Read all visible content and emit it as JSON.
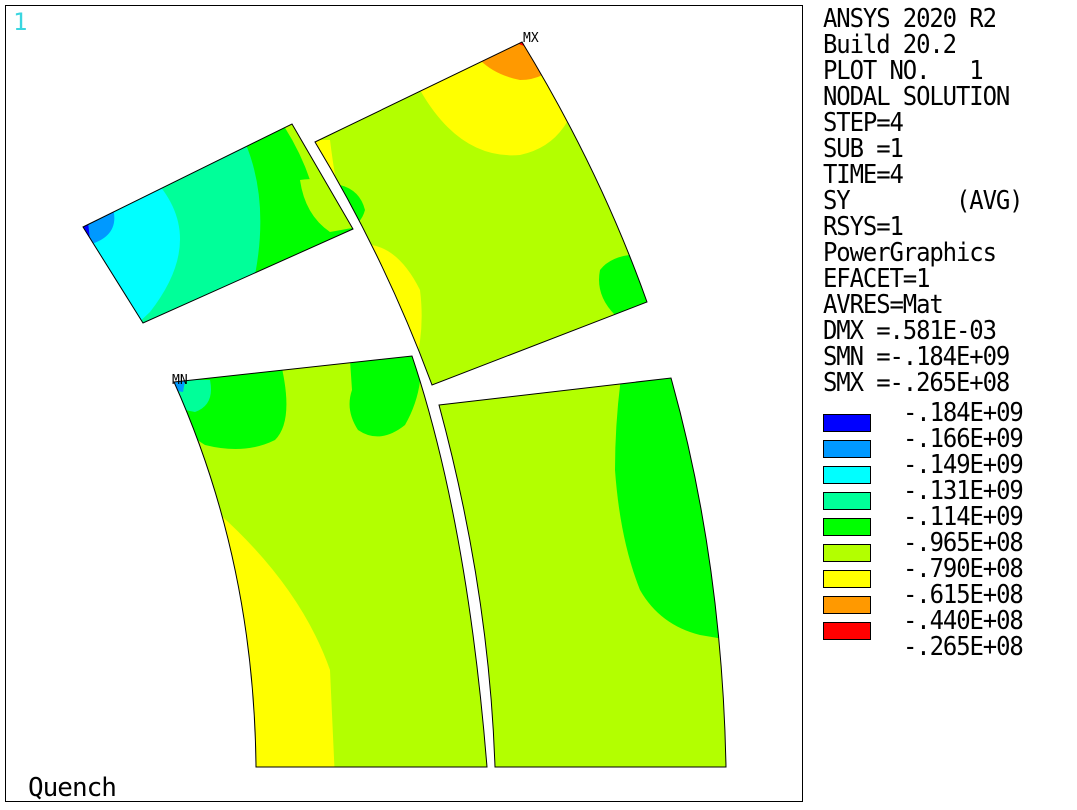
{
  "window_number": "1",
  "caption": "Quench",
  "info_lines": [
    "ANSYS 2020 R2",
    "Build 20.2",
    "PLOT NO.   1",
    "NODAL SOLUTION",
    "STEP=4",
    "SUB =1",
    "TIME=4",
    "SY        (AVG)",
    "RSYS=1",
    "PowerGraphics",
    "EFACET=1",
    "AVRES=Mat",
    "DMX =.581E-03",
    "SMN =-.184E+09",
    "SMX =-.265E+08"
  ],
  "legend": [
    {
      "label": "-.184E+09",
      "color": "#0000ff"
    },
    {
      "label": "-.166E+09",
      "color": "#0099ff"
    },
    {
      "label": "-.149E+09",
      "color": "#00ffff"
    },
    {
      "label": "-.131E+09",
      "color": "#00ff99"
    },
    {
      "label": "-.114E+09",
      "color": "#00ff00"
    },
    {
      "label": "-.965E+08",
      "color": "#b3ff00"
    },
    {
      "label": "-.790E+08",
      "color": "#ffff00"
    },
    {
      "label": "-.615E+08",
      "color": "#ff9900"
    },
    {
      "label": "-.440E+08",
      "color": "#ff0000"
    },
    {
      "label": "-.265E+08",
      "color": ""
    }
  ],
  "markers": {
    "max": "MX",
    "min": "MN"
  }
}
